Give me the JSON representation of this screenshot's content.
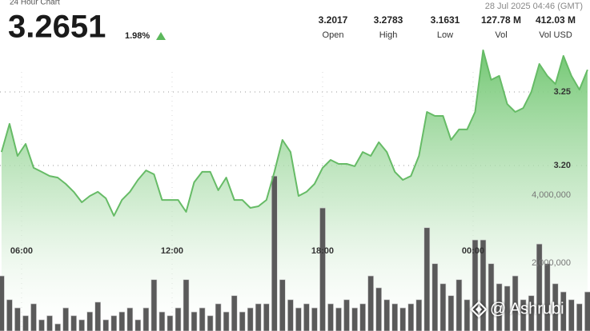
{
  "header": {
    "title": "24 Hour Chart",
    "price": "3.2651",
    "change": "1.98%",
    "timestamp": "28 Jul 2025 04:46 (GMT)",
    "stats": [
      {
        "value": "3.2017",
        "label": "Open"
      },
      {
        "value": "3.2783",
        "label": "High"
      },
      {
        "value": "3.1631",
        "label": "Low"
      },
      {
        "value": "127.78 M",
        "label": "Vol"
      },
      {
        "value": "412.03 M",
        "label": "Vol USD"
      }
    ]
  },
  "watermark": "@ Ashrubi",
  "chart_data": {
    "type": "line",
    "x": [
      5.2,
      5.52,
      5.84,
      6.16,
      6.48,
      6.8,
      7.12,
      7.44,
      7.76,
      8.08,
      8.4,
      8.72,
      9.04,
      9.36,
      9.68,
      10,
      10.32,
      10.64,
      10.96,
      11.28,
      11.6,
      11.92,
      12.24,
      12.56,
      12.88,
      13.2,
      13.52,
      13.84,
      14.16,
      14.48,
      14.8,
      15.12,
      15.44,
      15.76,
      16.08,
      16.4,
      16.72,
      17.04,
      17.36,
      17.68,
      18,
      18.32,
      18.64,
      18.96,
      19.28,
      19.6,
      19.92,
      20.24,
      20.56,
      20.88,
      21.2,
      21.52,
      21.84,
      22.16,
      22.48,
      22.8,
      23.12,
      23.44,
      23.76,
      24.08,
      24.4,
      24.72,
      25.04,
      25.36,
      25.68,
      26,
      26.32,
      26.64,
      26.96,
      27.28,
      27.6,
      27.92,
      28.24,
      28.56
    ],
    "series": [
      {
        "color": "#66bb66",
        "values": [
          3.2092,
          3.2283,
          3.2065,
          3.2147,
          3.1984,
          3.1957,
          3.1929,
          3.1918,
          3.1875,
          3.1821,
          3.175,
          3.1793,
          3.1821,
          3.1777,
          3.1658,
          3.1766,
          3.1821,
          3.1902,
          3.1967,
          3.194,
          3.1766,
          3.1766,
          3.1766,
          3.1685,
          3.1886,
          3.1957,
          3.1957,
          3.1832,
          3.1918,
          3.1766,
          3.1766,
          3.1712,
          3.1723,
          3.1766,
          3.1957,
          3.2174,
          3.2092,
          3.1793,
          3.1821,
          3.1875,
          3.1984,
          3.2038,
          3.2011,
          3.2011,
          3.1995,
          3.2092,
          3.2065,
          3.2158,
          3.2092,
          3.1957,
          3.1902,
          3.1929,
          3.2065,
          3.2364,
          3.2337,
          3.2337,
          3.2174,
          3.2245,
          3.2245,
          3.2364,
          3.2783,
          3.2582,
          3.2609,
          3.2418,
          3.2364,
          3.2391,
          3.25,
          3.269,
          3.2609,
          3.2554,
          3.2745,
          3.2609,
          3.2516,
          3.2651
        ]
      },
      {
        "color": "#5a5a5a",
        "type": "bar",
        "axis": "y2",
        "values": [
          1620000,
          920000,
          680000,
          450000,
          800000,
          330000,
          450000,
          210000,
          680000,
          450000,
          330000,
          560000,
          850000,
          330000,
          450000,
          560000,
          680000,
          330000,
          680000,
          1510000,
          560000,
          450000,
          680000,
          1510000,
          560000,
          680000,
          450000,
          800000,
          560000,
          1040000,
          560000,
          680000,
          800000,
          800000,
          4560000,
          1510000,
          920000,
          680000,
          800000,
          680000,
          3620000,
          800000,
          680000,
          920000,
          680000,
          800000,
          1620000,
          1270000,
          920000,
          800000,
          680000,
          800000,
          920000,
          3040000,
          1980000,
          1390000,
          1040000,
          1510000,
          920000,
          2680000,
          2680000,
          1980000,
          1390000,
          1320000,
          1620000,
          920000,
          1040000,
          2560000,
          1980000,
          1390000,
          1150000,
          920000,
          800000,
          1150000
        ]
      }
    ],
    "xlim": [
      5.14,
      28.66
    ],
    "xticks": [
      {
        "value": 6,
        "label": "06:00"
      },
      {
        "value": 12,
        "label": "12:00"
      },
      {
        "value": 18,
        "label": "18:00"
      },
      {
        "value": 24,
        "label": "00:00"
      }
    ],
    "ylim": [
      3.0875,
      3.3125
    ],
    "yticks": [
      3.25,
      {
        "value": 3.2,
        "label": "3.20"
      }
    ],
    "y2lim": [
      0,
      9740000
    ],
    "y2ticks": [
      {
        "value": 4000000,
        "label": "4,000,000"
      },
      {
        "value": 2000000,
        "label": "2,000,000"
      }
    ],
    "grid": true
  }
}
